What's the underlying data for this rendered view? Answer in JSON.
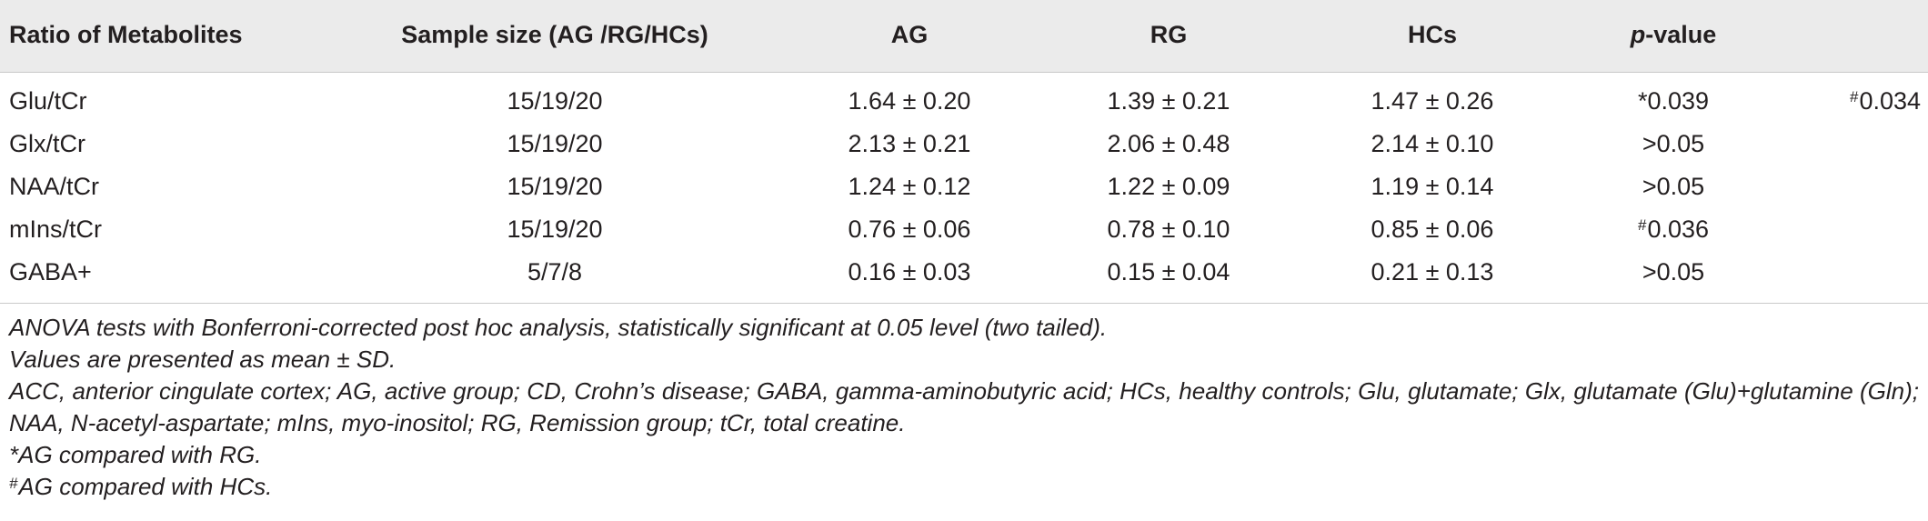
{
  "table": {
    "headers": {
      "metabolite": "Ratio of Metabolites",
      "sample_size": "Sample size (AG /RG/HCs)",
      "ag": "AG",
      "rg": "RG",
      "hcs": "HCs",
      "p_value_prefix": "p",
      "p_value_suffix": "-value"
    },
    "rows": [
      {
        "metabolite": "Glu/tCr",
        "sample_size": "15/19/20",
        "ag": "1.64 ± 0.20",
        "rg": "1.39 ± 0.21",
        "hcs": "1.47 ± 0.26",
        "p1_mark": "*",
        "p1": "0.039",
        "p2_mark": "#",
        "p2": "0.034"
      },
      {
        "metabolite": "Glx/tCr",
        "sample_size": "15/19/20",
        "ag": "2.13 ± 0.21",
        "rg": "2.06 ± 0.48",
        "hcs": "2.14 ± 0.10",
        "p1_mark": "",
        "p1": ">0.05",
        "p2_mark": "",
        "p2": ""
      },
      {
        "metabolite": "NAA/tCr",
        "sample_size": "15/19/20",
        "ag": "1.24 ± 0.12",
        "rg": "1.22 ± 0.09",
        "hcs": "1.19 ± 0.14",
        "p1_mark": "",
        "p1": ">0.05",
        "p2_mark": "",
        "p2": ""
      },
      {
        "metabolite": "mIns/tCr",
        "sample_size": "15/19/20",
        "ag": "0.76 ± 0.06",
        "rg": "0.78 ± 0.10",
        "hcs": "0.85 ± 0.06",
        "p1_mark": "#",
        "p1": "0.036",
        "p2_mark": "",
        "p2": ""
      },
      {
        "metabolite": "GABA+",
        "sample_size": "5/7/8",
        "ag": "0.16 ± 0.03",
        "rg": "0.15 ± 0.04",
        "hcs": "0.21 ± 0.13",
        "p1_mark": "",
        "p1": ">0.05",
        "p2_mark": "",
        "p2": ""
      }
    ]
  },
  "footnotes": {
    "anova": "ANOVA tests with Bonferroni-corrected post hoc analysis, statistically significant at 0.05 level (two tailed).",
    "values": "Values are presented as mean ± SD.",
    "abbreviations": "ACC, anterior cingulate cortex; AG, active group; CD, Crohn’s disease; GABA, gamma-aminobutyric acid; HCs, healthy controls; Glu, glutamate; Glx, glutamate (Glu)+glutamine (Gln); NAA, N-acetyl-aspartate; mIns, myo-inositol; RG, Remission group; tCr, total creatine.",
    "star_mark": "*",
    "star_note": "AG compared with RG.",
    "hash_mark": "#",
    "hash_note": "AG compared with HCs."
  }
}
